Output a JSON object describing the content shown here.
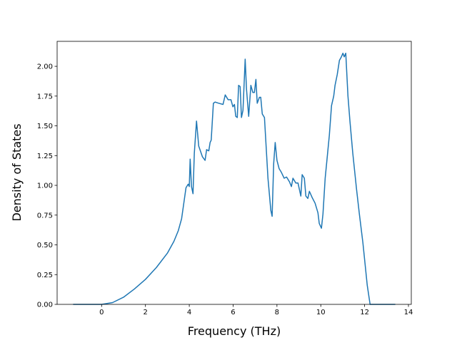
{
  "chart_data": {
    "type": "line",
    "x_label": "Frequency (THz)",
    "y_label": "Density of States",
    "xlim": [
      -2.03,
      14.13
    ],
    "ylim": [
      0,
      2.21
    ],
    "xticks": [
      0,
      2,
      4,
      6,
      8,
      10,
      12,
      14
    ],
    "yticks": [
      {
        "value": 0,
        "label": "0.00"
      },
      {
        "value": 0.25,
        "label": "0.25"
      },
      {
        "value": 0.5,
        "label": "0.50"
      },
      {
        "value": 0.75,
        "label": "0.75"
      },
      {
        "value": 1,
        "label": "1.00"
      },
      {
        "value": 1.25,
        "label": "1.25"
      },
      {
        "value": 1.5,
        "label": "1.50"
      },
      {
        "value": 1.75,
        "label": "1.75"
      },
      {
        "value": 2,
        "label": "2.00"
      }
    ],
    "grid": false,
    "series": [
      {
        "color": "#1f77b4",
        "x": [
          -1.3,
          0,
          0.5,
          1,
          1.5,
          2,
          2.5,
          3,
          3.3,
          3.5,
          3.65,
          3.75,
          3.85,
          3.95,
          4.0,
          4.04,
          4.1,
          4.17,
          4.23,
          4.33,
          4.43,
          4.6,
          4.72,
          4.79,
          4.89,
          4.95,
          5.0,
          5.1,
          5.18,
          5.34,
          5.54,
          5.64,
          5.77,
          5.9,
          5.99,
          6.06,
          6.12,
          6.19,
          6.25,
          6.32,
          6.38,
          6.45,
          6.55,
          6.61,
          6.71,
          6.81,
          6.9,
          6.97,
          7.04,
          7.1,
          7.2,
          7.26,
          7.33,
          7.43,
          7.59,
          7.72,
          7.78,
          7.85,
          7.92,
          8.0,
          8.1,
          8.2,
          8.33,
          8.44,
          8.57,
          8.66,
          8.73,
          8.86,
          8.96,
          9.09,
          9.15,
          9.25,
          9.32,
          9.41,
          9.48,
          9.6,
          9.74,
          9.87,
          9.93,
          10.03,
          10.1,
          10.2,
          10.29,
          10.39,
          10.49,
          10.59,
          10.65,
          10.75,
          10.85,
          10.94,
          11.01,
          11.07,
          11.14,
          11.24,
          11.33,
          11.46,
          11.63,
          11.76,
          11.92,
          12.02,
          12.12,
          12.25,
          13.4
        ],
        "values": [
          0,
          0,
          0.015,
          0.06,
          0.13,
          0.21,
          0.31,
          0.43,
          0.53,
          0.62,
          0.72,
          0.85,
          0.98,
          1.01,
          0.99,
          1.22,
          0.99,
          0.93,
          1.27,
          1.54,
          1.33,
          1.24,
          1.21,
          1.3,
          1.29,
          1.36,
          1.38,
          1.69,
          1.7,
          1.69,
          1.68,
          1.76,
          1.72,
          1.72,
          1.66,
          1.68,
          1.58,
          1.57,
          1.84,
          1.83,
          1.57,
          1.63,
          2.06,
          1.81,
          1.58,
          1.84,
          1.78,
          1.78,
          1.89,
          1.69,
          1.74,
          1.74,
          1.6,
          1.57,
          1.06,
          0.79,
          0.74,
          1.18,
          1.36,
          1.21,
          1.14,
          1.11,
          1.06,
          1.07,
          1.03,
          0.99,
          1.06,
          1.02,
          1.02,
          0.91,
          1.09,
          1.06,
          0.91,
          0.89,
          0.95,
          0.9,
          0.85,
          0.77,
          0.68,
          0.64,
          0.76,
          1.06,
          1.23,
          1.42,
          1.67,
          1.75,
          1.84,
          1.93,
          2.05,
          2.08,
          2.11,
          2.08,
          2.11,
          1.75,
          1.54,
          1.27,
          0.97,
          0.76,
          0.52,
          0.34,
          0.16,
          0,
          0
        ]
      }
    ]
  }
}
